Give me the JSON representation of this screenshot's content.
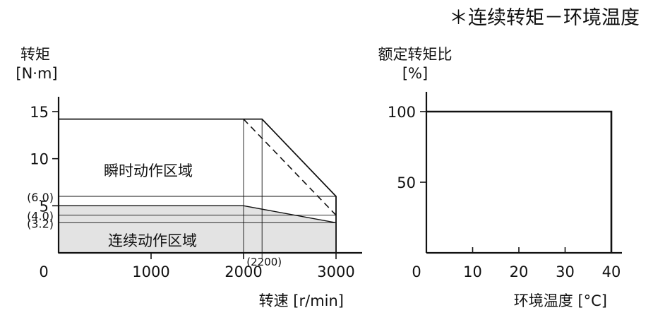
{
  "page_title": "＊连续转矩－环境温度",
  "chart_data": [
    {
      "type": "area",
      "ylabel_line1": "转矩",
      "ylabel_line2": "[N·m]",
      "xlabel": "转速 [r/min]",
      "xlim": [
        0,
        3000
      ],
      "ylim": [
        0,
        17
      ],
      "x_ticks": [
        0,
        1000,
        2000,
        3000
      ],
      "x_tick_labels": [
        "0",
        "1000",
        "2000",
        "3000"
      ],
      "y_ticks": [
        5,
        10,
        15
      ],
      "y_tick_labels": [
        "5",
        "10",
        "15"
      ],
      "y_extra_labels": [
        {
          "value": 6.0,
          "label": "(6.0)"
        },
        {
          "value": 4.0,
          "label": "(4.0)"
        },
        {
          "value": 3.2,
          "label": "(3.2)"
        }
      ],
      "x_extra_labels": [
        {
          "value": 2200,
          "label": "(2200)"
        }
      ],
      "regions": [
        {
          "name": "瞬时动作区域",
          "fill": "#ffffff",
          "points": [
            [
              0,
              0
            ],
            [
              0,
              14.2
            ],
            [
              2200,
              14.2
            ],
            [
              3000,
              6.0
            ],
            [
              3000,
              0
            ]
          ]
        },
        {
          "name": "连续动作区域",
          "fill": "#e3e3e3",
          "points": [
            [
              0,
              0
            ],
            [
              0,
              5.0
            ],
            [
              2000,
              5.0
            ],
            [
              3000,
              3.2
            ],
            [
              3000,
              0
            ]
          ]
        }
      ],
      "dashed_line": [
        [
          2000,
          14.2
        ],
        [
          3000,
          4.0
        ]
      ],
      "guide_lines": {
        "horizontal": [
          6.0,
          4.0,
          3.2
        ],
        "vertical": [
          2000,
          2200
        ]
      }
    },
    {
      "type": "line",
      "ylabel_line1": "额定转矩比",
      "ylabel_line2": "[%]",
      "xlabel": "环境温度 [°C]",
      "xlim": [
        0,
        40
      ],
      "ylim": [
        0,
        115
      ],
      "x_ticks": [
        0,
        10,
        20,
        30,
        40
      ],
      "x_tick_labels": [
        "0",
        "10",
        "20",
        "30",
        "40"
      ],
      "y_ticks": [
        50,
        100
      ],
      "y_tick_labels": [
        "50",
        "100"
      ],
      "series": [
        {
          "x": [
            0,
            40,
            40
          ],
          "y": [
            100,
            100,
            0
          ]
        }
      ]
    }
  ]
}
